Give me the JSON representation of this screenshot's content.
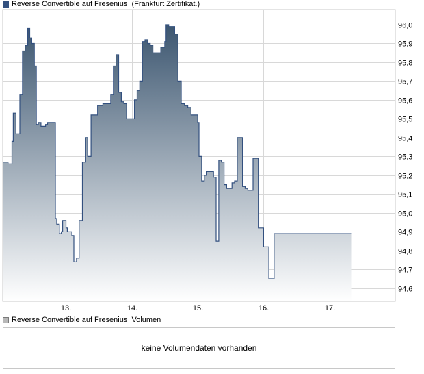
{
  "price_legend": {
    "name": "Reverse Convertible auf Fresenius",
    "venue": "(Frankfurt Zertifikat.)"
  },
  "volume_legend": {
    "name": "Reverse Convertible auf Fresenius",
    "label": "Volumen"
  },
  "volume_panel": {
    "message": "keine Volumendaten vorhanden"
  },
  "colors": {
    "line": "#33507f",
    "fill_top": "#3c5670",
    "fill_bottom": "#ffffff",
    "grid": "#d8d8d8"
  },
  "chart_data": {
    "type": "area",
    "title": "",
    "xlabel": "",
    "ylabel": "",
    "ylim": [
      94.53,
      96.08
    ],
    "x_ticks": [
      "13.",
      "14.",
      "15.",
      "16.",
      "17."
    ],
    "x_tick_positions": [
      13,
      14,
      15,
      16,
      17
    ],
    "y_ticks": [
      "94,6",
      "94,7",
      "94,8",
      "94,9",
      "95,0",
      "95,1",
      "95,2",
      "95,3",
      "95,4",
      "95,5",
      "95,6",
      "95,7",
      "95,8",
      "95,9",
      "96,0"
    ],
    "y_tick_values": [
      94.6,
      94.7,
      94.8,
      94.9,
      95.0,
      95.1,
      95.2,
      95.3,
      95.4,
      95.5,
      95.6,
      95.7,
      95.8,
      95.9,
      96.0
    ],
    "xlim": [
      12.04,
      18.0
    ],
    "grid": true,
    "series": [
      {
        "x": [
          12.04,
          12.1,
          12.12,
          12.14,
          12.18,
          12.2,
          12.24,
          12.27,
          12.3,
          12.34,
          12.38,
          12.42,
          12.45,
          12.48,
          12.52,
          12.55,
          12.58,
          12.62,
          12.65,
          12.69,
          12.72,
          12.75,
          12.78,
          12.81,
          12.84,
          12.86,
          12.9,
          12.93,
          12.95,
          12.98,
          13.0,
          13.02,
          13.05,
          13.09,
          13.12,
          13.16,
          13.2,
          13.25,
          13.3,
          13.33,
          13.35,
          13.38,
          13.4,
          13.44,
          13.48,
          13.52,
          13.56,
          13.6,
          13.64,
          13.68,
          13.72,
          13.76,
          13.8,
          13.84,
          13.88,
          13.92,
          13.96,
          14.0,
          14.04,
          14.08,
          14.12,
          14.16,
          14.2,
          14.24,
          14.28,
          14.32,
          14.36,
          14.4,
          14.44,
          14.5,
          14.52,
          14.56,
          14.6,
          14.65,
          14.7,
          14.75,
          14.8,
          14.85,
          14.9,
          15.0,
          15.02,
          15.06,
          15.1,
          15.13,
          15.17,
          15.2,
          15.24,
          15.28,
          15.32,
          15.36,
          15.4,
          15.44,
          15.48,
          15.52,
          15.56,
          15.6,
          15.64,
          15.68,
          15.72,
          15.76,
          15.8,
          15.84,
          15.88,
          15.92,
          15.96,
          16.0,
          16.04,
          16.08,
          16.12,
          16.16,
          16.2,
          16.24,
          16.28,
          16.32,
          16.36,
          16.4,
          16.44,
          16.48,
          16.52,
          16.56,
          16.6,
          16.64,
          16.68,
          16.72,
          16.76,
          16.8,
          16.84,
          16.88,
          16.92,
          16.96,
          17.0,
          17.04,
          17.08,
          17.12,
          17.16,
          17.2,
          17.24,
          17.28,
          17.3,
          17.33
        ],
        "y": [
          95.27,
          95.27,
          95.26,
          95.26,
          95.38,
          95.53,
          95.42,
          95.42,
          95.63,
          95.86,
          95.89,
          95.98,
          95.93,
          95.9,
          95.78,
          95.47,
          95.48,
          95.46,
          95.46,
          95.47,
          95.48,
          95.48,
          95.48,
          95.48,
          94.97,
          94.94,
          94.89,
          94.9,
          94.96,
          94.96,
          94.92,
          94.9,
          94.9,
          94.88,
          94.74,
          94.76,
          94.96,
          95.27,
          95.4,
          95.3,
          95.3,
          95.52,
          95.52,
          95.52,
          95.57,
          95.57,
          95.58,
          95.58,
          95.58,
          95.63,
          95.78,
          95.84,
          95.64,
          95.59,
          95.58,
          95.5,
          95.5,
          95.5,
          95.6,
          95.65,
          95.7,
          95.91,
          95.92,
          95.9,
          95.89,
          95.85,
          95.85,
          95.85,
          95.88,
          95.91,
          96.0,
          95.99,
          95.99,
          95.95,
          95.7,
          95.58,
          95.57,
          95.56,
          95.52,
          95.48,
          95.3,
          95.17,
          95.2,
          95.22,
          95.22,
          95.22,
          95.19,
          94.85,
          95.28,
          95.27,
          95.15,
          95.13,
          95.13,
          95.16,
          95.17,
          95.4,
          95.4,
          95.14,
          95.13,
          95.12,
          95.12,
          95.29,
          95.29,
          94.92,
          94.92,
          94.82,
          94.82,
          94.65,
          94.65,
          94.89,
          94.89,
          94.89,
          94.89,
          94.89,
          94.89,
          94.89,
          94.89,
          94.89,
          94.89,
          94.89,
          94.89,
          94.89,
          94.89,
          94.89,
          94.89,
          94.89,
          94.89,
          94.89,
          94.89,
          94.89,
          94.89,
          94.89,
          94.89,
          94.89,
          94.89,
          94.89,
          94.89,
          94.89,
          94.89,
          94.89
        ]
      }
    ]
  }
}
